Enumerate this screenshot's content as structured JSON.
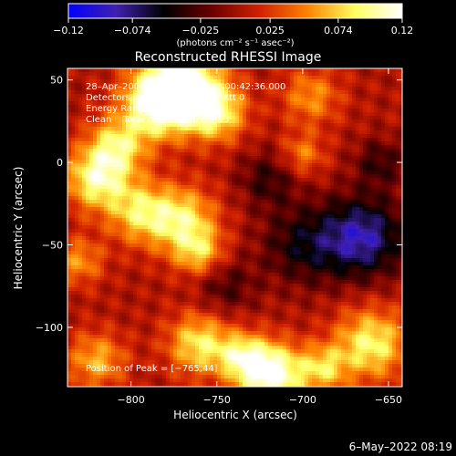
{
  "chart_data": {
    "type": "heatmap",
    "title": "Reconstructed RHESSI Image",
    "xlabel": "Heliocentric X (arcsec)",
    "ylabel": "Heliocentric Y (arcsec)",
    "xlim": [
      -837,
      -642
    ],
    "ylim": [
      -136,
      57
    ],
    "xticks": [
      -800,
      -750,
      -700,
      -650
    ],
    "xtick_labels": [
      "−800",
      "−750",
      "−700",
      "−650"
    ],
    "yticks": [
      50,
      0,
      -50,
      -100
    ],
    "ytick_labels": [
      "50",
      "0",
      "−50",
      "−100"
    ],
    "colorbar": {
      "range": [
        -0.12,
        0.12
      ],
      "ticks": [
        -0.12,
        -0.074,
        -0.025,
        0.025,
        0.074,
        0.12
      ],
      "tick_labels": [
        "−0.12",
        "−0.074",
        "−0.025",
        "0.025",
        "0.074",
        "0.12"
      ],
      "units_label": "(photons cm⁻² s⁻¹ asec⁻²)",
      "stops": [
        "#0000ff",
        "#4020b0",
        "#000000",
        "#6a0000",
        "#d02000",
        "#ff8000",
        "#ffff60",
        "#ffffff"
      ]
    },
    "annotations": [
      "28–Apr–2006 00:40:32.000 to 00:42:36.000",
      "Detectors: 3F 4F 5F 6F 7F 8F, Att 0",
      "Energy Range: 3.0 – 6.0 keV",
      "Clean    Total counts: 7.09E+03"
    ],
    "peak_label": "Position of Peak = [−765,44]",
    "peak": [
      -765,
      44
    ],
    "sources": [
      {
        "x": -770,
        "y": 48,
        "r": 16,
        "v": 0.12
      },
      {
        "x": -785,
        "y": 35,
        "r": 14,
        "v": 0.095
      },
      {
        "x": -750,
        "y": 30,
        "r": 12,
        "v": 0.08
      },
      {
        "x": -820,
        "y": -10,
        "r": 13,
        "v": 0.09
      },
      {
        "x": -808,
        "y": 10,
        "r": 12,
        "v": 0.075
      },
      {
        "x": -795,
        "y": -30,
        "r": 13,
        "v": 0.07
      },
      {
        "x": -770,
        "y": -35,
        "r": 14,
        "v": 0.08
      },
      {
        "x": -760,
        "y": -55,
        "r": 10,
        "v": 0.06
      },
      {
        "x": -830,
        "y": -60,
        "r": 10,
        "v": 0.05
      },
      {
        "x": -718,
        "y": -128,
        "r": 13,
        "v": 0.12
      },
      {
        "x": -760,
        "y": -110,
        "r": 13,
        "v": 0.08
      },
      {
        "x": -735,
        "y": -118,
        "r": 10,
        "v": 0.07
      },
      {
        "x": -660,
        "y": -110,
        "r": 15,
        "v": 0.085
      },
      {
        "x": -688,
        "y": -125,
        "r": 10,
        "v": 0.065
      },
      {
        "x": -820,
        "y": -120,
        "r": 12,
        "v": 0.06
      },
      {
        "x": -700,
        "y": 5,
        "r": 9,
        "v": 0.045
      },
      {
        "x": -695,
        "y": 40,
        "r": 12,
        "v": 0.05
      },
      {
        "x": -665,
        "y": -45,
        "r": 17,
        "v": -0.09
      },
      {
        "x": -700,
        "y": -50,
        "r": 17,
        "v": -0.05
      },
      {
        "x": -720,
        "y": -10,
        "r": 12,
        "v": -0.04
      },
      {
        "x": -655,
        "y": 0,
        "r": 10,
        "v": -0.04
      },
      {
        "x": -745,
        "y": -75,
        "r": 12,
        "v": -0.035
      }
    ],
    "background": 0.005
  },
  "footer": {
    "date": "6–May–2022 08:19"
  }
}
